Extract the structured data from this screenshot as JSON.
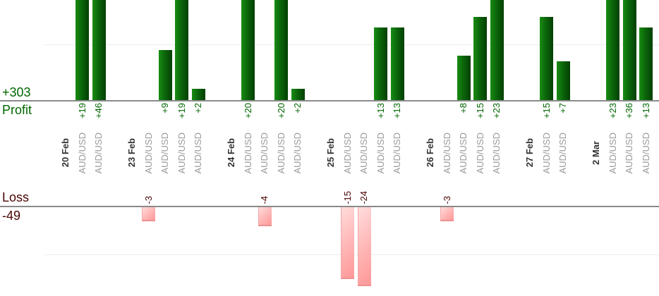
{
  "chart_data": {
    "type": "bar",
    "orientation": "vertical",
    "background": "#ffffff",
    "legend": "none",
    "sections": {
      "profit": {
        "label": "Profit",
        "total": "+303",
        "side": "above-axis",
        "gridline_value": 10
      },
      "loss": {
        "label": "Loss",
        "total": "-49",
        "side": "below-axis",
        "gridline_value": -10
      }
    },
    "x_axis": {
      "group_labels": "dates",
      "item_label": "AUD/USD",
      "label_rotation": "90deg bottom-to-top"
    },
    "groups": [
      {
        "date": "20 Feb",
        "trades": [
          {
            "symbol": "AUD/USD",
            "value": 19,
            "label": "+19"
          },
          {
            "symbol": "AUD/USD",
            "value": 46,
            "label": "+46"
          }
        ]
      },
      {
        "date": "23 Feb",
        "trades": [
          {
            "symbol": "AUD/USD",
            "value": -3,
            "label": "-3"
          },
          {
            "symbol": "AUD/USD",
            "value": 9,
            "label": "+9"
          },
          {
            "symbol": "AUD/USD",
            "value": 19,
            "label": "+19"
          },
          {
            "symbol": "AUD/USD",
            "value": 2,
            "label": "+2"
          }
        ]
      },
      {
        "date": "24 Feb",
        "trades": [
          {
            "symbol": "AUD/USD",
            "value": 20,
            "label": "+20"
          },
          {
            "symbol": "AUD/USD",
            "value": -4,
            "label": "-4"
          },
          {
            "symbol": "AUD/USD",
            "value": 20,
            "label": "+20"
          },
          {
            "symbol": "AUD/USD",
            "value": 2,
            "label": "+2"
          }
        ]
      },
      {
        "date": "25 Feb",
        "trades": [
          {
            "symbol": "AUD/USD",
            "value": -15,
            "label": "-15"
          },
          {
            "symbol": "AUD/USD",
            "value": -24,
            "label": "-24"
          },
          {
            "symbol": "AUD/USD",
            "value": 13,
            "label": "+13"
          },
          {
            "symbol": "AUD/USD",
            "value": 13,
            "label": "+13"
          }
        ]
      },
      {
        "date": "26 Feb",
        "trades": [
          {
            "symbol": "AUD/USD",
            "value": -3,
            "label": "-3"
          },
          {
            "symbol": "AUD/USD",
            "value": 8,
            "label": "+8"
          },
          {
            "symbol": "AUD/USD",
            "value": 15,
            "label": "+15"
          },
          {
            "symbol": "AUD/USD",
            "value": 23,
            "label": "+23"
          }
        ]
      },
      {
        "date": "27 Feb",
        "trades": [
          {
            "symbol": "AUD/USD",
            "value": 15,
            "label": "+15"
          },
          {
            "symbol": "AUD/USD",
            "value": 7,
            "label": "+7"
          }
        ]
      },
      {
        "date": "2 Mar",
        "trades": [
          {
            "symbol": "AUD/USD",
            "value": 23,
            "label": "+23"
          },
          {
            "symbol": "AUD/USD",
            "value": 36,
            "label": "+36"
          },
          {
            "symbol": "AUD/USD",
            "value": 13,
            "label": "+13"
          }
        ]
      }
    ],
    "colors": {
      "profit_text": "#006600",
      "loss_text": "#4a0404",
      "profit_bar_start": "#188c12",
      "profit_bar_end": "#043f04",
      "loss_bar_start": "#ffdcdc",
      "loss_bar_end": "#ff9898",
      "date_label": "#333333",
      "symbol_label": "#9a9a9a",
      "axis_line": "#8a8a8a",
      "gridline": "#ececec"
    }
  }
}
